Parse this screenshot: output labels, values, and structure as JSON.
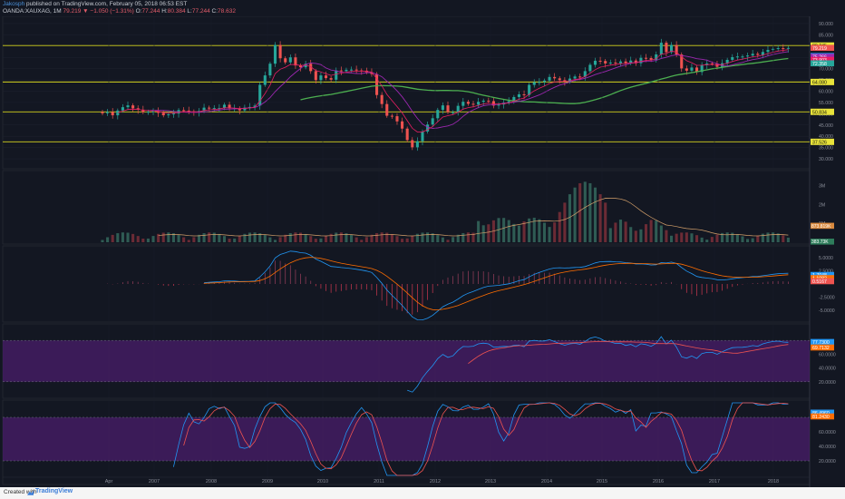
{
  "header": {
    "author": "Jakosph",
    "published": "published on TradingView.com, February 05, 2018 06:53 EST",
    "symbol": "OANDA:XAUXAG, 1M",
    "price_line": "79.219 ▼ −1.050 (−1.31%)",
    "open_label": "O:",
    "open_value": "77.244",
    "high_label": "H:",
    "high_value": "80.384",
    "low_label": "L:",
    "low_value": "77.244",
    "close_label": "C:",
    "close_value": "78.632"
  },
  "footer": {
    "created_with": "Created with",
    "brand": "TradingView"
  },
  "colors": {
    "background": "#131722",
    "up": "#26a69a",
    "down": "#ef5350",
    "sma_slow": "#4caf50",
    "sma_mid": "#9c27b0",
    "ema_fast": "#e91e63",
    "hline": "#d4d41e",
    "macd": "#2196f3",
    "signal": "#ff6d00",
    "rsi_band": "#4a1d6b"
  },
  "chart_data": [
    {
      "type": "line",
      "panel": "price",
      "y_tick_labels": [
        "90.000",
        "85.000",
        "75.000",
        "70.000",
        "65.000",
        "60.000",
        "55.000",
        "50.000",
        "45.000",
        "40.000",
        "35.000",
        "30.000"
      ],
      "ylim": [
        28,
        92
      ],
      "x_labels": [
        "Apr",
        "2007",
        "2008",
        "2009",
        "2010",
        "2011",
        "2012",
        "2013",
        "2014",
        "2015",
        "2016",
        "2017",
        "2018"
      ],
      "horizontal_levels": [
        {
          "label": "80.245",
          "value": 80.245
        },
        {
          "label": "64.080",
          "value": 64.08
        },
        {
          "label": "50.834",
          "value": 50.834
        },
        {
          "label": "37.526",
          "value": 37.526
        }
      ],
      "price_badges": [
        "79.219",
        "75.631",
        "75.266",
        "73.903",
        "72.358",
        "64.080"
      ],
      "close": [
        50.2,
        50.8,
        49.3,
        51.4,
        52.9,
        53.7,
        52.4,
        51.8,
        50.7,
        50.9,
        51.1,
        50.4,
        49.3,
        49.7,
        50.1,
        51.6,
        51.4,
        51.0,
        50.6,
        51.2,
        52.7,
        52.5,
        52.5,
        52.5,
        54.0,
        52.4,
        52.4,
        51.5,
        52.7,
        53.0,
        53.6,
        62.8,
        67.0,
        72.2,
        80.5,
        74.6,
        72.8,
        75.0,
        71.4,
        70.6,
        72.2,
        68.9,
        64.9,
        67.0,
        65.8,
        65.1,
        69.2,
        68.9,
        69.5,
        69.6,
        69.2,
        69.1,
        68.4,
        67.6,
        58.3,
        54.3,
        49.1,
        48.9,
        46.6,
        43.4,
        38.3,
        35.1,
        37.8,
        42.1,
        45.2,
        48.0,
        51.7,
        53.7,
        50.7,
        50.7,
        53.5,
        55.3,
        54.4,
        54.0,
        55.3,
        55.8,
        55.6,
        53.6,
        54.1,
        54.9,
        55.6,
        57.4,
        58.6,
        58.3,
        62.8,
        64.0,
        64.1,
        64.7,
        66.3,
        65.7,
        64.9,
        64.2,
        65.6,
        66.5,
        66.4,
        68.9,
        71.7,
        73.5,
        73.4,
        72.3,
        72.7,
        72.4,
        73.2,
        72.4,
        73.6,
        72.4,
        74.8,
        74.7,
        73.9,
        76.3,
        81.5,
        77.3,
        80.5,
        76.3,
        70.1,
        69.1,
        70.5,
        68.5,
        71.6,
        72.3,
        72.2,
        70.8,
        72.4,
        73.9,
        75.1,
        75.4,
        75.4,
        75.8,
        76.6,
        76.1,
        77.4,
        78.3,
        78.8,
        79.1,
        78.9,
        79.2
      ],
      "volume_series": {
        "name": "Volume",
        "badges": [
          "873.819K",
          "383.73K"
        ],
        "y_tick_labels": [
          "3M",
          "2M",
          "1M"
        ]
      },
      "macd_series": {
        "name": "MACD",
        "badges": [
          "1.7048",
          "1.1082",
          "0.5167"
        ],
        "y_tick_labels": [
          "5.0000",
          "2.5000",
          "-2.5000",
          "-5.0000"
        ]
      },
      "rsi_series": {
        "name": "RSI",
        "badges": [
          "77.7300",
          "69.7132"
        ],
        "y_tick_labels": [
          "60.0000",
          "40.0000",
          "20.0000"
        ]
      },
      "stoch_series": {
        "name": "Stoch",
        "badges": [
          "86.4960",
          "81.2430"
        ],
        "y_tick_labels": [
          "60.0000",
          "40.0000",
          "20.0000"
        ]
      }
    }
  ]
}
